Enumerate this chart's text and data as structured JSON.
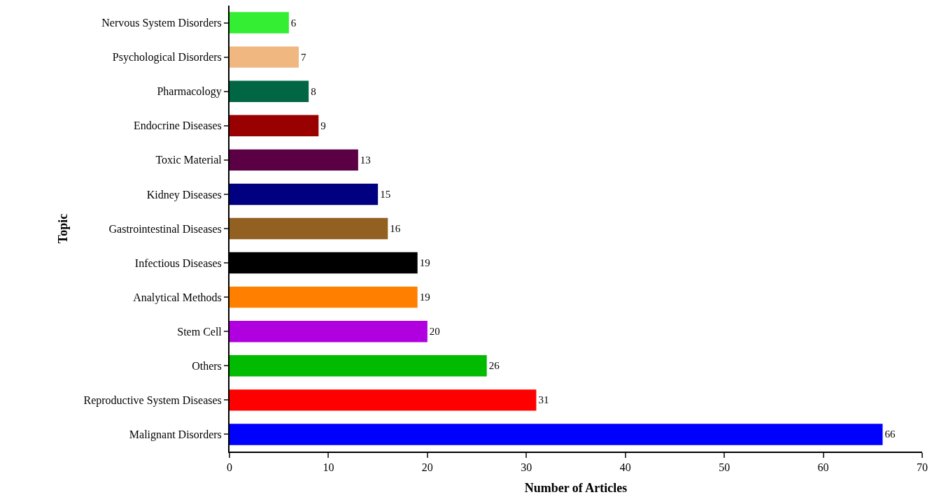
{
  "chart_data": {
    "type": "bar",
    "orientation": "horizontal",
    "xlabel": "Number of Articles",
    "ylabel": "Topic",
    "categories": [
      "Nervous System Disorders",
      "Psychological Disorders",
      "Pharmacology",
      "Endocrine Diseases",
      "Toxic Material",
      "Kidney Diseases",
      "Gastrointestinal Diseases",
      "Infectious Diseases",
      "Analytical Methods",
      "Stem Cell",
      "Others",
      "Reproductive System Diseases",
      "Malignant Disorders"
    ],
    "values": [
      6,
      7,
      8,
      9,
      13,
      15,
      16,
      19,
      19,
      20,
      26,
      31,
      66
    ],
    "colors": [
      "#33ee33",
      "#f0b880",
      "#006644",
      "#990000",
      "#5c0045",
      "#000080",
      "#926020",
      "#000000",
      "#ff8000",
      "#b000e0",
      "#00bb00",
      "#ff0000",
      "#0000ff"
    ],
    "xlim": [
      0,
      70
    ],
    "xticks": [
      0,
      10,
      20,
      30,
      40,
      50,
      60,
      70
    ],
    "data_labels": true
  }
}
